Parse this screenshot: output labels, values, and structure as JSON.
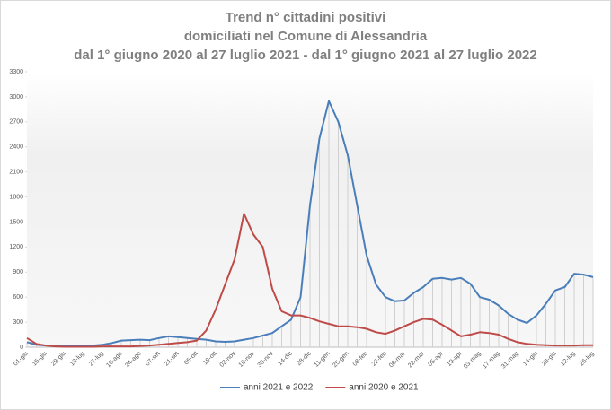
{
  "chart_data": {
    "type": "line",
    "title": [
      "Trend n° cittadini positivi",
      "domiciliati nel Comune di Alessandria",
      "dal 1° giugno 2020 al 27 luglio 2021 - dal 1° giugno 2021 al 27 luglio 2022"
    ],
    "categories": [
      "01-giu",
      null,
      "15-giu",
      null,
      "29-giu",
      null,
      "13-lug",
      null,
      "27-lug",
      null,
      "10-ago",
      null,
      "24-ago",
      null,
      "07-set",
      null,
      "21-set",
      null,
      "05-ott",
      null,
      "19-ott",
      null,
      "02-nov",
      null,
      "16-nov",
      null,
      "30-nov",
      null,
      "14-dic",
      null,
      "28-dic",
      null,
      "11-gen",
      null,
      "25-gen",
      null,
      "08-feb",
      null,
      "22-feb",
      null,
      "08-mar",
      null,
      "22-mar",
      null,
      "05-apr",
      null,
      "19-apr",
      null,
      "03-mag",
      null,
      "17-mag",
      null,
      "31-mag",
      null,
      "14-giu",
      null,
      "28-giu",
      null,
      "12-lug",
      null,
      "26-lug"
    ],
    "series": [
      {
        "name": "anni 2021 e 2022",
        "color": "#4a7ebb",
        "values": [
          60,
          30,
          20,
          15,
          15,
          15,
          15,
          20,
          30,
          50,
          80,
          85,
          90,
          85,
          110,
          130,
          120,
          110,
          100,
          90,
          70,
          65,
          70,
          90,
          110,
          140,
          170,
          250,
          330,
          600,
          1700,
          2500,
          2950,
          2700,
          2300,
          1700,
          1100,
          750,
          600,
          550,
          560,
          650,
          720,
          820,
          830,
          810,
          830,
          760,
          600,
          570,
          500,
          400,
          330,
          290,
          380,
          520,
          680,
          720,
          880,
          870,
          840
        ]
      },
      {
        "name": "anni 2020 e 2021",
        "color": "#be4b48",
        "values": [
          110,
          40,
          20,
          10,
          5,
          5,
          5,
          5,
          10,
          10,
          10,
          10,
          15,
          20,
          30,
          40,
          50,
          60,
          80,
          200,
          450,
          750,
          1050,
          1600,
          1350,
          1200,
          700,
          430,
          380,
          380,
          350,
          310,
          280,
          250,
          250,
          240,
          220,
          180,
          160,
          200,
          250,
          300,
          340,
          330,
          270,
          200,
          130,
          150,
          180,
          170,
          150,
          100,
          60,
          40,
          30,
          25,
          20,
          20,
          20,
          25,
          25
        ]
      }
    ],
    "ylim": [
      0,
      3300
    ],
    "yticks": [
      0,
      300,
      600,
      900,
      1200,
      1500,
      1800,
      2100,
      2400,
      2700,
      3000,
      3300
    ],
    "grid": false,
    "legend": "bottom"
  }
}
